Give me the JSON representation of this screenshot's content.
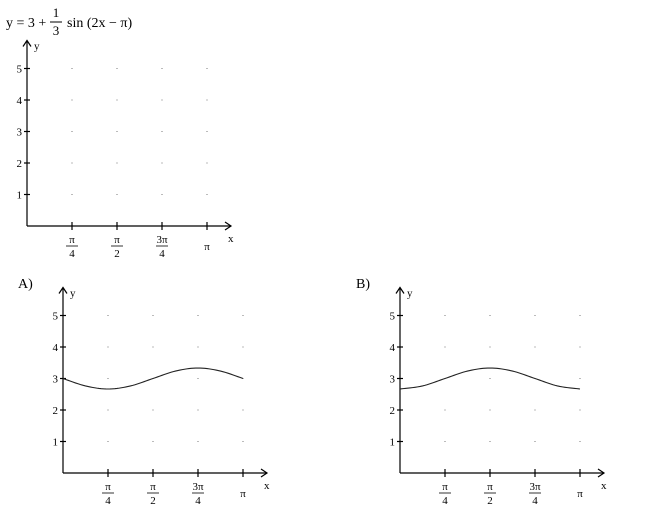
{
  "problem": {
    "eq_lhs": "y = 3 +",
    "frac_num": "1",
    "frac_den": "3",
    "eq_rhs": "sin (2x − π)"
  },
  "axis_labels": {
    "x": "x",
    "y": "y"
  },
  "x_tick_labels": [
    {
      "num": "π",
      "den": "4"
    },
    {
      "num": "π",
      "den": "2"
    },
    {
      "num": "3π",
      "den": "4"
    },
    {
      "num": "π",
      "den": ""
    }
  ],
  "y_tick_labels": [
    "1",
    "2",
    "3",
    "4",
    "5"
  ],
  "choices": [
    {
      "label": "A)"
    },
    {
      "label": "B)"
    }
  ],
  "chart_data": [
    {
      "type": "line",
      "title": "",
      "xlabel": "x",
      "ylabel": "y",
      "xlim": [
        0,
        3.1416
      ],
      "ylim": [
        0,
        5
      ],
      "xticks": [
        0.7854,
        1.5708,
        2.3562,
        3.1416
      ],
      "yticks": [
        1,
        2,
        3,
        4,
        5
      ],
      "grid": "dotted",
      "series": []
    },
    {
      "type": "line",
      "title": "",
      "xlabel": "x",
      "ylabel": "y",
      "xlim": [
        0,
        3.1416
      ],
      "ylim": [
        0,
        5
      ],
      "xticks": [
        0.7854,
        1.5708,
        2.3562,
        3.1416
      ],
      "yticks": [
        1,
        2,
        3,
        4,
        5
      ],
      "grid": "dotted",
      "series": [
        {
          "x": [
            0,
            0.3927,
            0.7854,
            1.1781,
            1.5708,
            1.9635,
            2.3562,
            2.7489,
            3.1416
          ],
          "y": [
            3.0,
            2.764,
            2.667,
            2.764,
            3.0,
            3.236,
            3.333,
            3.236,
            3.0
          ]
        }
      ]
    },
    {
      "type": "line",
      "title": "",
      "xlabel": "x",
      "ylabel": "y",
      "xlim": [
        0,
        3.1416
      ],
      "ylim": [
        0,
        5
      ],
      "xticks": [
        0.7854,
        1.5708,
        2.3562,
        3.1416
      ],
      "yticks": [
        1,
        2,
        3,
        4,
        5
      ],
      "grid": "dotted",
      "series": [
        {
          "x": [
            0,
            0.3927,
            0.7854,
            1.1781,
            1.5708,
            1.9635,
            2.3562,
            2.7489,
            3.1416
          ],
          "y": [
            2.667,
            2.764,
            3.0,
            3.236,
            3.333,
            3.236,
            3.0,
            2.764,
            2.667
          ]
        }
      ]
    }
  ]
}
